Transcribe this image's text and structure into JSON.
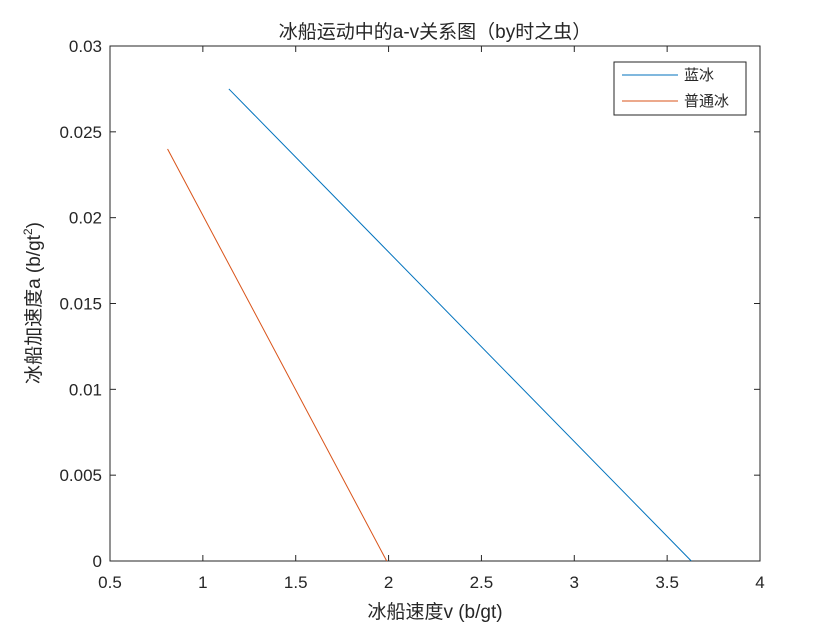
{
  "chart_data": {
    "type": "line",
    "title": "冰船运动中的a-v关系图（by时之虫）",
    "xlabel": "冰船速度v (b/gt)",
    "ylabel_main": "冰船加速度a (b/gt",
    "ylabel_sup": "2",
    "ylabel_close": ")",
    "xlim": [
      0.5,
      4
    ],
    "ylim": [
      0,
      0.03
    ],
    "xticks": [
      0.5,
      1,
      1.5,
      2,
      2.5,
      3,
      3.5,
      4
    ],
    "xtick_labels": [
      "0.5",
      "1",
      "1.5",
      "2",
      "2.5",
      "3",
      "3.5",
      "4"
    ],
    "yticks": [
      0,
      0.005,
      0.01,
      0.015,
      0.02,
      0.025,
      0.03
    ],
    "ytick_labels": [
      "0",
      "0.005",
      "0.01",
      "0.015",
      "0.02",
      "0.025",
      "0.03"
    ],
    "grid": false,
    "legend_position": "top-right",
    "series": [
      {
        "name": "蓝冰",
        "color": "#0072BD",
        "x": [
          1.14,
          3.63
        ],
        "y": [
          0.0275,
          0
        ]
      },
      {
        "name": "普通冰",
        "color": "#D95319",
        "x": [
          0.81,
          1.99
        ],
        "y": [
          0.024,
          0
        ]
      }
    ]
  }
}
